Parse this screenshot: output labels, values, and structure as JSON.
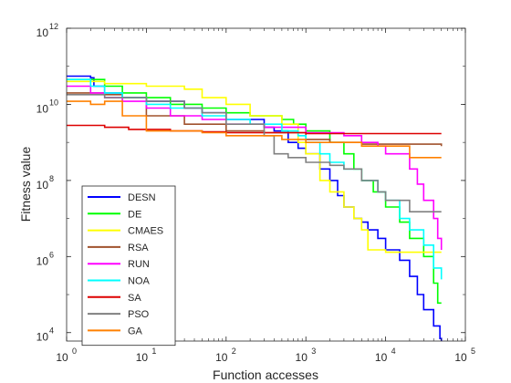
{
  "chart_data": {
    "type": "line",
    "title": "",
    "xlabel": "Function accesses",
    "ylabel": "Fitness value",
    "x_scale": "log",
    "y_scale": "log",
    "xlim": [
      1,
      100000
    ],
    "ylim": [
      6000,
      1000000000000
    ],
    "x_ticks": [
      {
        "value": 1,
        "base": "10",
        "exp": "0"
      },
      {
        "value": 10,
        "base": "10",
        "exp": "1"
      },
      {
        "value": 100,
        "base": "10",
        "exp": "2"
      },
      {
        "value": 1000,
        "base": "10",
        "exp": "3"
      },
      {
        "value": 10000,
        "base": "10",
        "exp": "4"
      },
      {
        "value": 100000,
        "base": "10",
        "exp": "5"
      }
    ],
    "y_ticks": [
      {
        "value": 10000,
        "base": "10",
        "exp": "4"
      },
      {
        "value": 1000000,
        "base": "10",
        "exp": "6"
      },
      {
        "value": 100000000,
        "base": "10",
        "exp": "8"
      },
      {
        "value": 10000000000,
        "base": "10",
        "exp": "10"
      },
      {
        "value": 1000000000000,
        "base": "10",
        "exp": "12"
      }
    ],
    "grid": false,
    "legend_position": "bottom-left",
    "series": [
      {
        "name": "DESN",
        "color": "#0000ff",
        "points": [
          [
            1,
            55000000000.0
          ],
          [
            2,
            50000000000.0
          ],
          [
            2.2,
            30000000000.0
          ],
          [
            3,
            20000000000.0
          ],
          [
            5,
            15000000000.0
          ],
          [
            10,
            12000000000.0
          ],
          [
            30,
            8000000000.0
          ],
          [
            50,
            6000000000.0
          ],
          [
            100,
            4000000000.0
          ],
          [
            300,
            2500000000.0
          ],
          [
            400,
            2000000000.0
          ],
          [
            600,
            1000000000.0
          ],
          [
            800,
            700000000.0
          ],
          [
            1000,
            500000000.0
          ],
          [
            1500,
            200000000.0
          ],
          [
            2000,
            100000000.0
          ],
          [
            2500,
            40000000.0
          ],
          [
            3000,
            20000000.0
          ],
          [
            4000,
            10000000.0
          ],
          [
            5000,
            8000000.0
          ],
          [
            6000,
            5000000.0
          ],
          [
            8000,
            3000000.0
          ],
          [
            10000,
            1500000.0
          ],
          [
            15000,
            800000.0
          ],
          [
            20000,
            300000.0
          ],
          [
            25000,
            100000.0
          ],
          [
            30000,
            40000.0
          ],
          [
            40000,
            15000.0
          ],
          [
            48000,
            7000.0
          ],
          [
            50000,
            6000.0
          ]
        ]
      },
      {
        "name": "DE",
        "color": "#00ff00",
        "points": [
          [
            1,
            45000000000.0
          ],
          [
            3,
            30000000000.0
          ],
          [
            5,
            20000000000.0
          ],
          [
            10,
            15000000000.0
          ],
          [
            20,
            10000000000.0
          ],
          [
            50,
            8000000000.0
          ],
          [
            100,
            6000000000.0
          ],
          [
            200,
            5000000000.0
          ],
          [
            500,
            4000000000.0
          ],
          [
            700,
            3000000000.0
          ],
          [
            1000,
            2000000000.0
          ],
          [
            2000,
            1000000000.0
          ],
          [
            3000,
            500000000.0
          ],
          [
            4000,
            200000000.0
          ],
          [
            5000,
            100000000.0
          ],
          [
            7000,
            50000000.0
          ],
          [
            10000,
            20000000.0
          ],
          [
            15000,
            8000000.0
          ],
          [
            20000,
            3000000.0
          ],
          [
            30000,
            1000000.0
          ],
          [
            40000,
            200000.0
          ],
          [
            45000,
            60000.0
          ],
          [
            50000,
            60000.0
          ]
        ]
      },
      {
        "name": "CMAES",
        "color": "#ffff00",
        "points": [
          [
            1,
            40000000000.0
          ],
          [
            3,
            35000000000.0
          ],
          [
            10,
            30000000000.0
          ],
          [
            30,
            25000000000.0
          ],
          [
            50,
            15000000000.0
          ],
          [
            100,
            10000000000.0
          ],
          [
            200,
            5000000000.0
          ],
          [
            500,
            3000000000.0
          ],
          [
            800,
            1000000000.0
          ],
          [
            1000,
            500000000.0
          ],
          [
            1500,
            100000000.0
          ],
          [
            2000,
            50000000.0
          ],
          [
            3000,
            20000000.0
          ],
          [
            4000,
            10000000.0
          ],
          [
            5000,
            5000000.0
          ],
          [
            6000,
            1500000.0
          ],
          [
            10000,
            1300000.0
          ],
          [
            50000,
            1300000.0
          ]
        ]
      },
      {
        "name": "RSA",
        "color": "#a0522d",
        "points": [
          [
            1,
            20000000000.0
          ],
          [
            3,
            18000000000.0
          ],
          [
            5,
            15000000000.0
          ],
          [
            10,
            5000000000.0
          ],
          [
            30,
            3000000000.0
          ],
          [
            100,
            2000000000.0
          ],
          [
            300,
            1800000000.0
          ],
          [
            1000,
            1200000000.0
          ],
          [
            2000,
            1000000000.0
          ],
          [
            5000,
            900000000.0
          ],
          [
            50000,
            800000000.0
          ]
        ]
      },
      {
        "name": "RUN",
        "color": "#ff00ff",
        "points": [
          [
            1,
            30000000000.0
          ],
          [
            2,
            20000000000.0
          ],
          [
            3,
            15000000000.0
          ],
          [
            5,
            12000000000.0
          ],
          [
            10,
            8000000000.0
          ],
          [
            20,
            5000000000.0
          ],
          [
            50,
            4000000000.0
          ],
          [
            100,
            3000000000.0
          ],
          [
            300,
            2500000000.0
          ],
          [
            1000,
            1800000000.0
          ],
          [
            3000,
            1500000000.0
          ],
          [
            5000,
            1000000000.0
          ],
          [
            8000,
            800000000.0
          ],
          [
            10000,
            500000000.0
          ],
          [
            20000,
            200000000.0
          ],
          [
            25000,
            80000000.0
          ],
          [
            30000,
            30000000.0
          ],
          [
            40000,
            10000000.0
          ],
          [
            45000,
            3000000.0
          ],
          [
            50000,
            1500000.0
          ]
        ]
      },
      {
        "name": "NOA",
        "color": "#00ffff",
        "points": [
          [
            1,
            45000000000.0
          ],
          [
            2,
            30000000000.0
          ],
          [
            3,
            20000000000.0
          ],
          [
            5,
            15000000000.0
          ],
          [
            10,
            10000000000.0
          ],
          [
            20,
            8000000000.0
          ],
          [
            50,
            5000000000.0
          ],
          [
            100,
            4000000000.0
          ],
          [
            200,
            3000000000.0
          ],
          [
            500,
            2000000000.0
          ],
          [
            800,
            1500000000.0
          ],
          [
            1000,
            1000000000.0
          ],
          [
            1500,
            500000000.0
          ],
          [
            2000,
            300000000.0
          ],
          [
            3000,
            200000000.0
          ],
          [
            5000,
            100000000.0
          ],
          [
            8000,
            50000000.0
          ],
          [
            10000,
            30000000.0
          ],
          [
            15000,
            10000000.0
          ],
          [
            20000,
            5000000.0
          ],
          [
            30000,
            2000000.0
          ],
          [
            40000,
            500000.0
          ],
          [
            50000,
            250000.0
          ]
        ]
      },
      {
        "name": "SA",
        "color": "#dd0000",
        "points": [
          [
            1,
            2800000000.0
          ],
          [
            3,
            2500000000.0
          ],
          [
            6,
            2200000000.0
          ],
          [
            20,
            2000000000.0
          ],
          [
            50,
            1900000000.0
          ],
          [
            100,
            1800000000.0
          ],
          [
            1000,
            1700000000.0
          ],
          [
            50000,
            1700000000.0
          ]
        ]
      },
      {
        "name": "PSO",
        "color": "#808080",
        "points": [
          [
            1,
            18000000000.0
          ],
          [
            3,
            15000000000.0
          ],
          [
            10,
            12000000000.0
          ],
          [
            30,
            8000000000.0
          ],
          [
            50,
            6000000000.0
          ],
          [
            100,
            3000000000.0
          ],
          [
            300,
            1500000000.0
          ],
          [
            400,
            500000000.0
          ],
          [
            600,
            400000000.0
          ],
          [
            1000,
            300000000.0
          ],
          [
            2000,
            250000000.0
          ],
          [
            3000,
            200000000.0
          ],
          [
            5000,
            100000000.0
          ],
          [
            8000,
            50000000.0
          ],
          [
            10000,
            30000000.0
          ],
          [
            20000,
            15000000.0
          ],
          [
            50000,
            15000000.0
          ]
        ]
      },
      {
        "name": "GA",
        "color": "#ff8000",
        "points": [
          [
            1,
            12000000000.0
          ],
          [
            2,
            10000000000.0
          ],
          [
            3,
            12000000000.0
          ],
          [
            5,
            5000000000.0
          ],
          [
            10,
            2000000000.0
          ],
          [
            50,
            1800000000.0
          ],
          [
            100,
            1500000000.0
          ],
          [
            500,
            1200000000.0
          ],
          [
            1000,
            1000000000.0
          ],
          [
            5000,
            800000000.0
          ],
          [
            20000,
            400000000.0
          ],
          [
            50000,
            400000000.0
          ]
        ]
      }
    ]
  }
}
